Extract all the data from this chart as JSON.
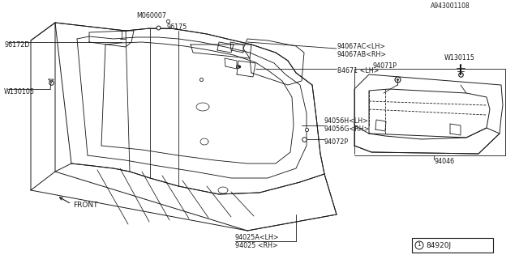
{
  "bg_color": "#ffffff",
  "line_color": "#1a1a1a",
  "diagram_id": "84920J",
  "footer_id": "A943001108",
  "front_label": "FRONT",
  "label_fs": 5.8,
  "lw": 0.7
}
